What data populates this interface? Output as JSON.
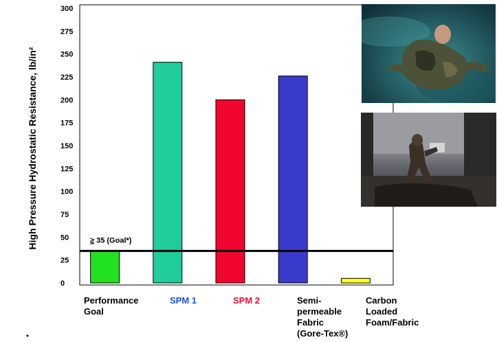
{
  "chart_data": {
    "type": "bar",
    "ylabel": "High Pressure Hydrostatic Resistance, lb/in²",
    "ylim": [
      0,
      300
    ],
    "yticks": [
      0,
      25,
      50,
      75,
      100,
      125,
      150,
      175,
      200,
      225,
      250,
      275,
      300
    ],
    "categories": [
      {
        "lines": [
          "Performance",
          "Goal"
        ],
        "color": "#000000"
      },
      {
        "lines": [
          "SPM 1"
        ],
        "color": "#1f4fdc"
      },
      {
        "lines": [
          "SPM 2"
        ],
        "color": "#e8102e"
      },
      {
        "lines": [
          "Semi-",
          "permeable",
          "Fabric",
          "(Gore-Tex®)"
        ],
        "color": "#000000"
      },
      {
        "lines": [
          "Carbon",
          "Loaded",
          "Foam/Fabric"
        ],
        "color": "#000000"
      }
    ],
    "values": [
      35,
      241,
      200,
      226,
      5
    ],
    "bar_colors": [
      "#22e022",
      "#1fcc9a",
      "#f0062f",
      "#3a3acc",
      "#ffff22"
    ],
    "goal_line": {
      "value": 35,
      "label_ge": "≥",
      "label_text": " 35 (Goal*)"
    },
    "grid": false
  },
  "footnote": "*"
}
